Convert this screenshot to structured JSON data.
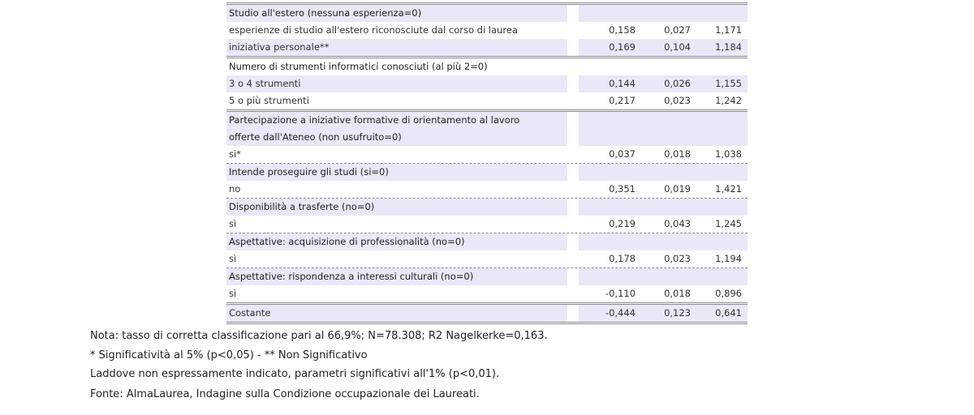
{
  "table": {
    "rows": [
      {
        "label": "Studio all'estero (nessuna esperienza=0)",
        "group": true,
        "shade": true
      },
      {
        "label": "esperienze di studio all'estero riconosciute dal corso di laurea",
        "values": [
          "0,158",
          "0,027",
          "1,171"
        ]
      },
      {
        "label": "iniziativa personale**",
        "values": [
          "0,169",
          "0,104",
          "1,184"
        ],
        "shade": true,
        "sep": "double"
      },
      {
        "label": "Numero di strumenti informatici conosciuti (al più 2=0)",
        "group": true
      },
      {
        "label": "3 o 4 strumenti",
        "values": [
          "0,144",
          "0,026",
          "1,155"
        ],
        "shade": true
      },
      {
        "label": "5 o più strumenti",
        "values": [
          "0,217",
          "0,023",
          "1,242"
        ],
        "sep": "double"
      },
      {
        "label": "Partecipazione a iniziative formative di orientamento al lavoro",
        "label2": "offerte dall'Ateneo (non usufruito=0)",
        "group": true,
        "shade": true
      },
      {
        "label": "si*",
        "values": [
          "0,037",
          "0,018",
          "1,038"
        ],
        "sep": "dot"
      },
      {
        "label": "Intende proseguire gli studi (si=0)",
        "group": true,
        "shade": true
      },
      {
        "label": "no",
        "values": [
          "0,351",
          "0,019",
          "1,421"
        ],
        "sep": "dot"
      },
      {
        "label": "Disponibilità a trasferte (no=0)",
        "group": true,
        "shade": true
      },
      {
        "label": "sì",
        "values": [
          "0,219",
          "0,043",
          "1,245"
        ],
        "sep": "dot"
      },
      {
        "label": "Aspettative: acquisizione di professionalità (no=0)",
        "group": true,
        "shade": true
      },
      {
        "label": "sì",
        "values": [
          "0,178",
          "0,023",
          "1,194"
        ],
        "sep": "dot"
      },
      {
        "label": "Aspettative: rispondenza a interessi culturali (no=0)",
        "group": true,
        "shade": true
      },
      {
        "label": "sì",
        "values": [
          "-0,110",
          "0,018",
          "0,896"
        ],
        "sep": "double"
      },
      {
        "label": "Costante",
        "values": [
          "-0,444",
          "0,123",
          "0,641"
        ],
        "shade": true,
        "sep": "double"
      }
    ]
  },
  "notes": {
    "nota": "Nota: tasso di corretta classificazione pari al 66,9%; N=78.308; R2 Nagelkerke=0,163.",
    "significance": "* Significatività al 5% (p<0,05) - ** Non Significativo",
    "default": "Laddove non espressamente indicato, parametri significativi all'1% (p<0,01).",
    "source": "Fonte: AlmaLaurea, Indagine sulla Condizione occupazionale dei Laureati."
  },
  "colors": {
    "row_shade": "#e8e8f8",
    "rule": "#8a8a8a"
  }
}
